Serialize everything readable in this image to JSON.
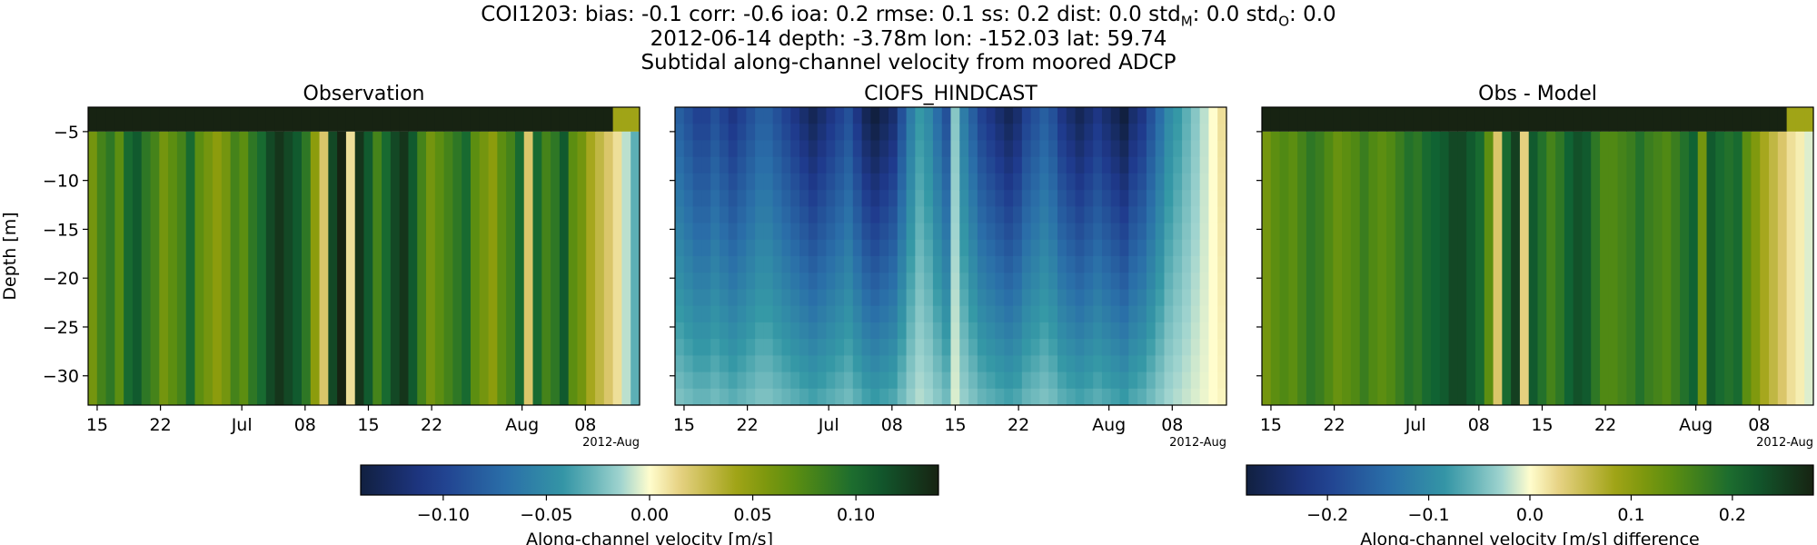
{
  "header": {
    "stats_line": "COI1203: bias: -0.1  corr: -0.6  ioa: 0.2  rmse: 0.1  ss: 0.2  dist: 0.0  std",
    "std_m_sub": "M",
    "std_m_sep": ": 0.0  std",
    "std_o_sub": "O",
    "std_o_tail": ": 0.0",
    "info_line": "2012-06-14 depth: -3.78m lon: -152.03 lat: 59.74",
    "subtitle": "Subtidal along-channel velocity from moored ADCP"
  },
  "chart_data": [
    {
      "type": "heatmap",
      "title": "Observation",
      "ylabel": "Depth [m]",
      "x_tick_labels": [
        "15",
        "22",
        "Jul",
        "08",
        "15",
        "22",
        "Aug",
        "08"
      ],
      "x_offset_label": "2012-Aug",
      "xlim": [
        "2012-06-14",
        "2012-08-14"
      ],
      "y_ticks": [
        -5,
        -10,
        -15,
        -20,
        -25,
        -30
      ],
      "ylim": [
        -33,
        -2.5
      ],
      "colormap": "delta",
      "clim": [
        -0.14,
        0.14
      ],
      "surface_bin_value": 0.14,
      "daily_mean_velocity_m_s": [
        0.06,
        0.08,
        0.09,
        0.07,
        0.1,
        0.11,
        0.09,
        0.08,
        0.06,
        0.07,
        0.08,
        0.1,
        0.07,
        0.06,
        0.05,
        0.06,
        0.08,
        0.07,
        0.09,
        0.1,
        0.12,
        0.13,
        0.12,
        0.11,
        0.09,
        0.05,
        0.02,
        0.12,
        0.14,
        0.01,
        0.13,
        0.11,
        0.08,
        0.1,
        0.12,
        0.13,
        0.11,
        0.08,
        0.06,
        0.07,
        0.08,
        0.09,
        0.1,
        0.07,
        0.06,
        0.05,
        0.07,
        0.08,
        0.1,
        0.02,
        0.1,
        0.08,
        0.09,
        0.11,
        0.07,
        0.06,
        0.04,
        0.03,
        0.02,
        0.01,
        -0.01,
        -0.03
      ]
    },
    {
      "type": "heatmap",
      "title": "CIOFS_HINDCAST",
      "x_tick_labels": [
        "15",
        "22",
        "Jul",
        "08",
        "15",
        "22",
        "Aug",
        "08"
      ],
      "x_offset_label": "2012-Aug",
      "xlim": [
        "2012-06-14",
        "2012-08-14"
      ],
      "y_ticks": [
        -5,
        -10,
        -15,
        -20,
        -25,
        -30
      ],
      "ylim": [
        -33,
        -2.5
      ],
      "colormap": "delta",
      "clim": [
        -0.14,
        0.14
      ],
      "surface_velocity_m_s": [
        -0.08,
        -0.09,
        -0.1,
        -0.1,
        -0.09,
        -0.1,
        -0.11,
        -0.1,
        -0.09,
        -0.08,
        -0.08,
        -0.09,
        -0.1,
        -0.11,
        -0.12,
        -0.13,
        -0.12,
        -0.11,
        -0.1,
        -0.09,
        -0.11,
        -0.13,
        -0.14,
        -0.13,
        -0.12,
        -0.09,
        -0.06,
        -0.04,
        -0.05,
        -0.07,
        -0.09,
        -0.02,
        -0.06,
        -0.08,
        -0.1,
        -0.11,
        -0.12,
        -0.13,
        -0.12,
        -0.1,
        -0.09,
        -0.08,
        -0.09,
        -0.11,
        -0.12,
        -0.13,
        -0.12,
        -0.11,
        -0.12,
        -0.13,
        -0.14,
        -0.12,
        -0.11,
        -0.09,
        -0.07,
        -0.05,
        -0.04,
        -0.03,
        -0.02,
        -0.01,
        0.0,
        0.01
      ]
    },
    {
      "type": "heatmap",
      "title": "Obs - Model",
      "x_tick_labels": [
        "15",
        "22",
        "Jul",
        "08",
        "15",
        "22",
        "Aug",
        "08"
      ],
      "x_offset_label": "2012-Aug",
      "xlim": [
        "2012-06-14",
        "2012-08-14"
      ],
      "y_ticks": [
        -5,
        -10,
        -15,
        -20,
        -25,
        -30
      ],
      "ylim": [
        -33,
        -2.5
      ],
      "colormap": "delta",
      "clim": [
        -0.28,
        0.28
      ],
      "surface_bin_value": 0.28,
      "daily_mean_difference_m_s": [
        0.12,
        0.14,
        0.15,
        0.14,
        0.16,
        0.18,
        0.17,
        0.15,
        0.13,
        0.14,
        0.15,
        0.17,
        0.15,
        0.14,
        0.15,
        0.17,
        0.19,
        0.18,
        0.2,
        0.21,
        0.22,
        0.24,
        0.24,
        0.22,
        0.2,
        0.14,
        0.04,
        0.2,
        0.25,
        0.03,
        0.22,
        0.19,
        0.16,
        0.18,
        0.21,
        0.23,
        0.22,
        0.18,
        0.15,
        0.15,
        0.16,
        0.17,
        0.19,
        0.17,
        0.16,
        0.15,
        0.17,
        0.19,
        0.21,
        0.12,
        0.22,
        0.2,
        0.19,
        0.2,
        0.14,
        0.11,
        0.08,
        0.06,
        0.04,
        0.02,
        0.01,
        -0.01
      ]
    }
  ],
  "colorbars": [
    {
      "label": "Along-channel velocity [m/s]",
      "range": [
        -0.14,
        0.14
      ],
      "ticks": [
        -0.1,
        -0.05,
        0.0,
        0.05,
        0.1
      ],
      "tick_labels": [
        "−0.10",
        "−0.05",
        "0.00",
        "0.05",
        "0.10"
      ]
    },
    {
      "label": "Along-channel velocity [m/s] difference",
      "range": [
        -0.28,
        0.28
      ],
      "ticks": [
        -0.2,
        -0.1,
        0.0,
        0.1,
        0.2
      ],
      "tick_labels": [
        "−0.2",
        "−0.1",
        "0.0",
        "0.1",
        "0.2"
      ]
    }
  ],
  "y_tick_labels": [
    "−5",
    "−10",
    "−15",
    "−20",
    "−25",
    "−30"
  ]
}
